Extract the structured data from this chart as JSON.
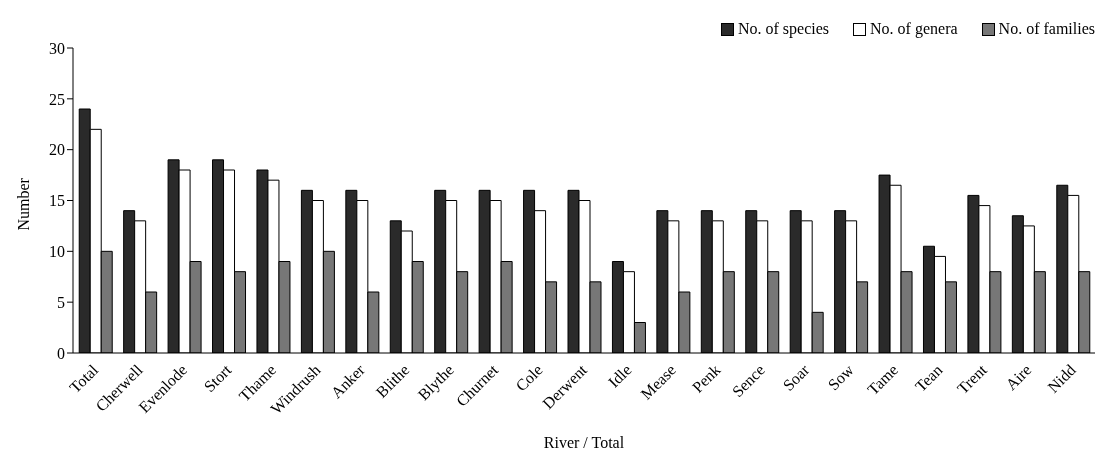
{
  "chart_data": {
    "type": "bar",
    "xlabel": "River / Total",
    "ylabel": "Number",
    "categories": [
      "Total",
      "Cherwell",
      "Evenlode",
      "Stort",
      "Thame",
      "Windrush",
      "Anker",
      "Blithe",
      "Blythe",
      "Churnet",
      "Cole",
      "Derwent",
      "Idle",
      "Mease",
      "Penk",
      "Sence",
      "Soar",
      "Sow",
      "Tame",
      "Tean",
      "Trent",
      "Aire",
      "Nidd"
    ],
    "series": [
      {
        "name": "No. of species",
        "color": "#2a2a2a",
        "values": [
          24,
          14,
          19,
          19,
          18,
          16,
          16,
          13,
          16,
          16,
          16,
          16,
          9,
          14,
          14,
          14,
          14,
          14,
          17.5,
          10.5,
          15.5,
          13.5,
          16.5
        ]
      },
      {
        "name": "No. of genera",
        "color": "#ffffff",
        "values": [
          22,
          13,
          18,
          18,
          17,
          15,
          15,
          12,
          15,
          15,
          14,
          15,
          8,
          13,
          13,
          13,
          13,
          13,
          16.5,
          9.5,
          14.5,
          12.5,
          15.5
        ]
      },
      {
        "name": "No. of families",
        "color": "#777777",
        "values": [
          10,
          6,
          9,
          8,
          9,
          10,
          6,
          9,
          8,
          9,
          7,
          7,
          3,
          6,
          8,
          8,
          4,
          7,
          8,
          7,
          8,
          8,
          8
        ]
      }
    ],
    "ylim": [
      0,
      30
    ],
    "yticks": [
      0,
      5,
      10,
      15,
      20,
      25,
      30
    ],
    "grid": false,
    "legend": "top right"
  }
}
